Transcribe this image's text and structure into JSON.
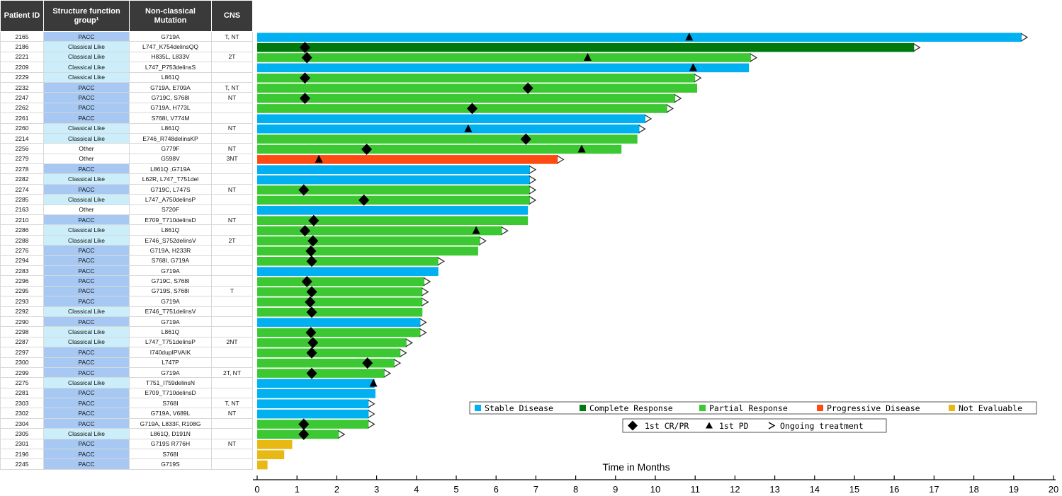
{
  "table": {
    "headers": [
      "Patient ID",
      "Structure function group¹",
      "Non-classical Mutation",
      "CNS"
    ]
  },
  "colors": {
    "stable": "#00b0f0",
    "complete": "#007a0c",
    "partial": "#3cc832",
    "progressive": "#ff4b12",
    "not_evaluable": "#e8b814",
    "pacc_cell": "#a6c8f2",
    "classical_cell": "#cceefa"
  },
  "legend": {
    "response": [
      {
        "key": "stable",
        "label": "Stable Disease"
      },
      {
        "key": "complete",
        "label": "Complete Response"
      },
      {
        "key": "partial",
        "label": "Partial Response"
      },
      {
        "key": "progressive",
        "label": "Progressive Disease"
      },
      {
        "key": "not_evaluable",
        "label": "Not Evaluable"
      }
    ],
    "markers": [
      {
        "symbol": "diamond",
        "label": "1st CR/PR"
      },
      {
        "symbol": "triangle",
        "label": "1st PD"
      },
      {
        "symbol": "arrow",
        "label": "Ongoing treatment"
      }
    ]
  },
  "chart_data": {
    "type": "bar",
    "orientation": "horizontal",
    "title": "",
    "xlabel": "Time in Months",
    "xlim": [
      0,
      20
    ],
    "xticks": [
      0,
      1,
      2,
      3,
      4,
      5,
      6,
      7,
      8,
      9,
      10,
      11,
      12,
      13,
      14,
      15,
      16,
      17,
      18,
      19,
      20
    ],
    "rows": [
      {
        "id": "2165",
        "group": "PACC",
        "mutation": "G719A",
        "cns": "T, NT",
        "response": "stable",
        "duration": 19.2,
        "cr_pr": null,
        "pd": 10.85,
        "ongoing": true
      },
      {
        "id": "2186",
        "group": "Classical Like",
        "mutation": "L747_K754delinsQQ",
        "cns": "",
        "response": "complete",
        "duration": 16.5,
        "cr_pr": 1.2,
        "pd": null,
        "ongoing": true
      },
      {
        "id": "2221",
        "group": "Classical Like",
        "mutation": "H835L, L833V",
        "cns": "2T",
        "response": "partial",
        "duration": 12.4,
        "cr_pr": 1.25,
        "pd": 8.3,
        "ongoing": true
      },
      {
        "id": "2209",
        "group": "Classical Like",
        "mutation": "L747_P753delinsS",
        "cns": "",
        "response": "stable",
        "duration": 12.35,
        "cr_pr": null,
        "pd": 10.95,
        "ongoing": false
      },
      {
        "id": "2229",
        "group": "Classical Like",
        "mutation": "L861Q",
        "cns": "",
        "response": "partial",
        "duration": 11.0,
        "cr_pr": 1.2,
        "pd": null,
        "ongoing": true
      },
      {
        "id": "2232",
        "group": "PACC",
        "mutation": "G719A, E709A",
        "cns": "T, NT",
        "response": "partial",
        "duration": 11.05,
        "cr_pr": 6.8,
        "pd": null,
        "ongoing": false
      },
      {
        "id": "2247",
        "group": "PACC",
        "mutation": "G719C, S768I",
        "cns": "NT",
        "response": "partial",
        "duration": 10.5,
        "cr_pr": 1.2,
        "pd": null,
        "ongoing": true
      },
      {
        "id": "2262",
        "group": "PACC",
        "mutation": "G719A, H773L",
        "cns": "",
        "response": "partial",
        "duration": 10.3,
        "cr_pr": 5.4,
        "pd": null,
        "ongoing": true
      },
      {
        "id": "2261",
        "group": "PACC",
        "mutation": "S768I, V774M",
        "cns": "",
        "response": "stable",
        "duration": 9.75,
        "cr_pr": null,
        "pd": null,
        "ongoing": true
      },
      {
        "id": "2260",
        "group": "Classical Like",
        "mutation": "L861Q",
        "cns": "NT",
        "response": "stable",
        "duration": 9.6,
        "cr_pr": null,
        "pd": 5.3,
        "ongoing": true
      },
      {
        "id": "2214",
        "group": "Classical Like",
        "mutation": "E746_R748delinsKP",
        "cns": "",
        "response": "partial",
        "duration": 9.55,
        "cr_pr": 6.75,
        "pd": null,
        "ongoing": false
      },
      {
        "id": "2256",
        "group": "Other",
        "mutation": "G779F",
        "cns": "NT",
        "response": "partial",
        "duration": 9.15,
        "cr_pr": 2.75,
        "pd": 8.15,
        "ongoing": false
      },
      {
        "id": "2279",
        "group": "Other",
        "mutation": "G598V",
        "cns": "3NT",
        "response": "progressive",
        "duration": 7.55,
        "cr_pr": null,
        "pd": 1.55,
        "ongoing": true
      },
      {
        "id": "2278",
        "group": "PACC",
        "mutation": "L861Q ,G719A",
        "cns": "",
        "response": "stable",
        "duration": 6.85,
        "cr_pr": null,
        "pd": null,
        "ongoing": true
      },
      {
        "id": "2282",
        "group": "Classical Like",
        "mutation": "L62R, L747_T751del",
        "cns": "",
        "response": "stable",
        "duration": 6.85,
        "cr_pr": null,
        "pd": null,
        "ongoing": true
      },
      {
        "id": "2274",
        "group": "PACC",
        "mutation": "G719C, L747S",
        "cns": "NT",
        "response": "partial",
        "duration": 6.85,
        "cr_pr": 1.17,
        "pd": null,
        "ongoing": true
      },
      {
        "id": "2285",
        "group": "Classical Like",
        "mutation": "L747_A750delinsP",
        "cns": "",
        "response": "partial",
        "duration": 6.85,
        "cr_pr": 2.68,
        "pd": null,
        "ongoing": true
      },
      {
        "id": "2163",
        "group": "Other",
        "mutation": "S720F",
        "cns": "",
        "response": "stable",
        "duration": 6.8,
        "cr_pr": null,
        "pd": null,
        "ongoing": false
      },
      {
        "id": "2210",
        "group": "PACC",
        "mutation": "E709_T710delinsD",
        "cns": "NT",
        "response": "partial",
        "duration": 6.8,
        "cr_pr": 1.42,
        "pd": null,
        "ongoing": false
      },
      {
        "id": "2286",
        "group": "Classical Like",
        "mutation": "L861Q",
        "cns": "",
        "response": "partial",
        "duration": 6.15,
        "cr_pr": 1.2,
        "pd": 5.5,
        "ongoing": true
      },
      {
        "id": "2288",
        "group": "Classical Like",
        "mutation": "E746_S752delinsV",
        "cns": "2T",
        "response": "partial",
        "duration": 5.6,
        "cr_pr": 1.4,
        "pd": null,
        "ongoing": true
      },
      {
        "id": "2276",
        "group": "PACC",
        "mutation": "G719A, H233R",
        "cns": "",
        "response": "partial",
        "duration": 5.55,
        "cr_pr": 1.35,
        "pd": null,
        "ongoing": false
      },
      {
        "id": "2294",
        "group": "PACC",
        "mutation": "S768I, G719A",
        "cns": "",
        "response": "partial",
        "duration": 4.55,
        "cr_pr": 1.37,
        "pd": null,
        "ongoing": true
      },
      {
        "id": "2283",
        "group": "PACC",
        "mutation": "G719A",
        "cns": "",
        "response": "stable",
        "duration": 4.55,
        "cr_pr": null,
        "pd": null,
        "ongoing": false
      },
      {
        "id": "2296",
        "group": "PACC",
        "mutation": "G719C, S768I",
        "cns": "",
        "response": "partial",
        "duration": 4.2,
        "cr_pr": 1.25,
        "pd": null,
        "ongoing": true
      },
      {
        "id": "2295",
        "group": "PACC",
        "mutation": "G719S, S768I",
        "cns": "T",
        "response": "partial",
        "duration": 4.15,
        "cr_pr": 1.37,
        "pd": null,
        "ongoing": true
      },
      {
        "id": "2293",
        "group": "PACC",
        "mutation": "G719A",
        "cns": "",
        "response": "partial",
        "duration": 4.15,
        "cr_pr": 1.33,
        "pd": null,
        "ongoing": true
      },
      {
        "id": "2292",
        "group": "Classical Like",
        "mutation": "E746_T751delinsV",
        "cns": "",
        "response": "partial",
        "duration": 4.15,
        "cr_pr": 1.37,
        "pd": null,
        "ongoing": false
      },
      {
        "id": "2290",
        "group": "PACC",
        "mutation": "G719A",
        "cns": "",
        "response": "stable",
        "duration": 4.1,
        "cr_pr": null,
        "pd": null,
        "ongoing": true
      },
      {
        "id": "2298",
        "group": "Classical Like",
        "mutation": "L861Q",
        "cns": "",
        "response": "partial",
        "duration": 4.1,
        "cr_pr": 1.35,
        "pd": null,
        "ongoing": true
      },
      {
        "id": "2287",
        "group": "Classical Like",
        "mutation": "L747_T751delinsP",
        "cns": "2NT",
        "response": "partial",
        "duration": 3.75,
        "cr_pr": 1.4,
        "pd": null,
        "ongoing": true
      },
      {
        "id": "2297",
        "group": "PACC",
        "mutation": "I740dupIPVAIK",
        "cns": "",
        "response": "partial",
        "duration": 3.6,
        "cr_pr": 1.37,
        "pd": null,
        "ongoing": true
      },
      {
        "id": "2300",
        "group": "PACC",
        "mutation": "L747P",
        "cns": "",
        "response": "partial",
        "duration": 3.45,
        "cr_pr": 2.77,
        "pd": null,
        "ongoing": true
      },
      {
        "id": "2299",
        "group": "PACC",
        "mutation": "G719A",
        "cns": "2T, NT",
        "response": "partial",
        "duration": 3.2,
        "cr_pr": 1.37,
        "pd": null,
        "ongoing": true
      },
      {
        "id": "2275",
        "group": "Classical Like",
        "mutation": "T751_I759delinsN",
        "cns": "",
        "response": "stable",
        "duration": 2.95,
        "cr_pr": null,
        "pd": 2.92,
        "ongoing": false
      },
      {
        "id": "2281",
        "group": "PACC",
        "mutation": "E709_T710delinsD",
        "cns": "",
        "response": "stable",
        "duration": 2.97,
        "cr_pr": null,
        "pd": null,
        "ongoing": false
      },
      {
        "id": "2303",
        "group": "PACC",
        "mutation": "S768I",
        "cns": "T, NT",
        "response": "stable",
        "duration": 2.8,
        "cr_pr": null,
        "pd": null,
        "ongoing": true
      },
      {
        "id": "2302",
        "group": "PACC",
        "mutation": "G719A, V689L",
        "cns": "NT",
        "response": "stable",
        "duration": 2.8,
        "cr_pr": null,
        "pd": null,
        "ongoing": true
      },
      {
        "id": "2304",
        "group": "PACC",
        "mutation": "G719A, L833F, R108G",
        "cns": "",
        "response": "partial",
        "duration": 2.8,
        "cr_pr": 1.17,
        "pd": null,
        "ongoing": true
      },
      {
        "id": "2305",
        "group": "Classical Like",
        "mutation": "L861Q, D191N",
        "cns": "",
        "response": "partial",
        "duration": 2.05,
        "cr_pr": 1.17,
        "pd": null,
        "ongoing": true
      },
      {
        "id": "2301",
        "group": "PACC",
        "mutation": "G719S R776H",
        "cns": "NT",
        "response": "not_evaluable",
        "duration": 0.88,
        "cr_pr": null,
        "pd": null,
        "ongoing": false
      },
      {
        "id": "2196",
        "group": "PACC",
        "mutation": "S768I",
        "cns": "",
        "response": "not_evaluable",
        "duration": 0.68,
        "cr_pr": null,
        "pd": null,
        "ongoing": false
      },
      {
        "id": "2245",
        "group": "PACC",
        "mutation": "G719S",
        "cns": "",
        "response": "not_evaluable",
        "duration": 0.26,
        "cr_pr": null,
        "pd": null,
        "ongoing": false
      }
    ]
  }
}
